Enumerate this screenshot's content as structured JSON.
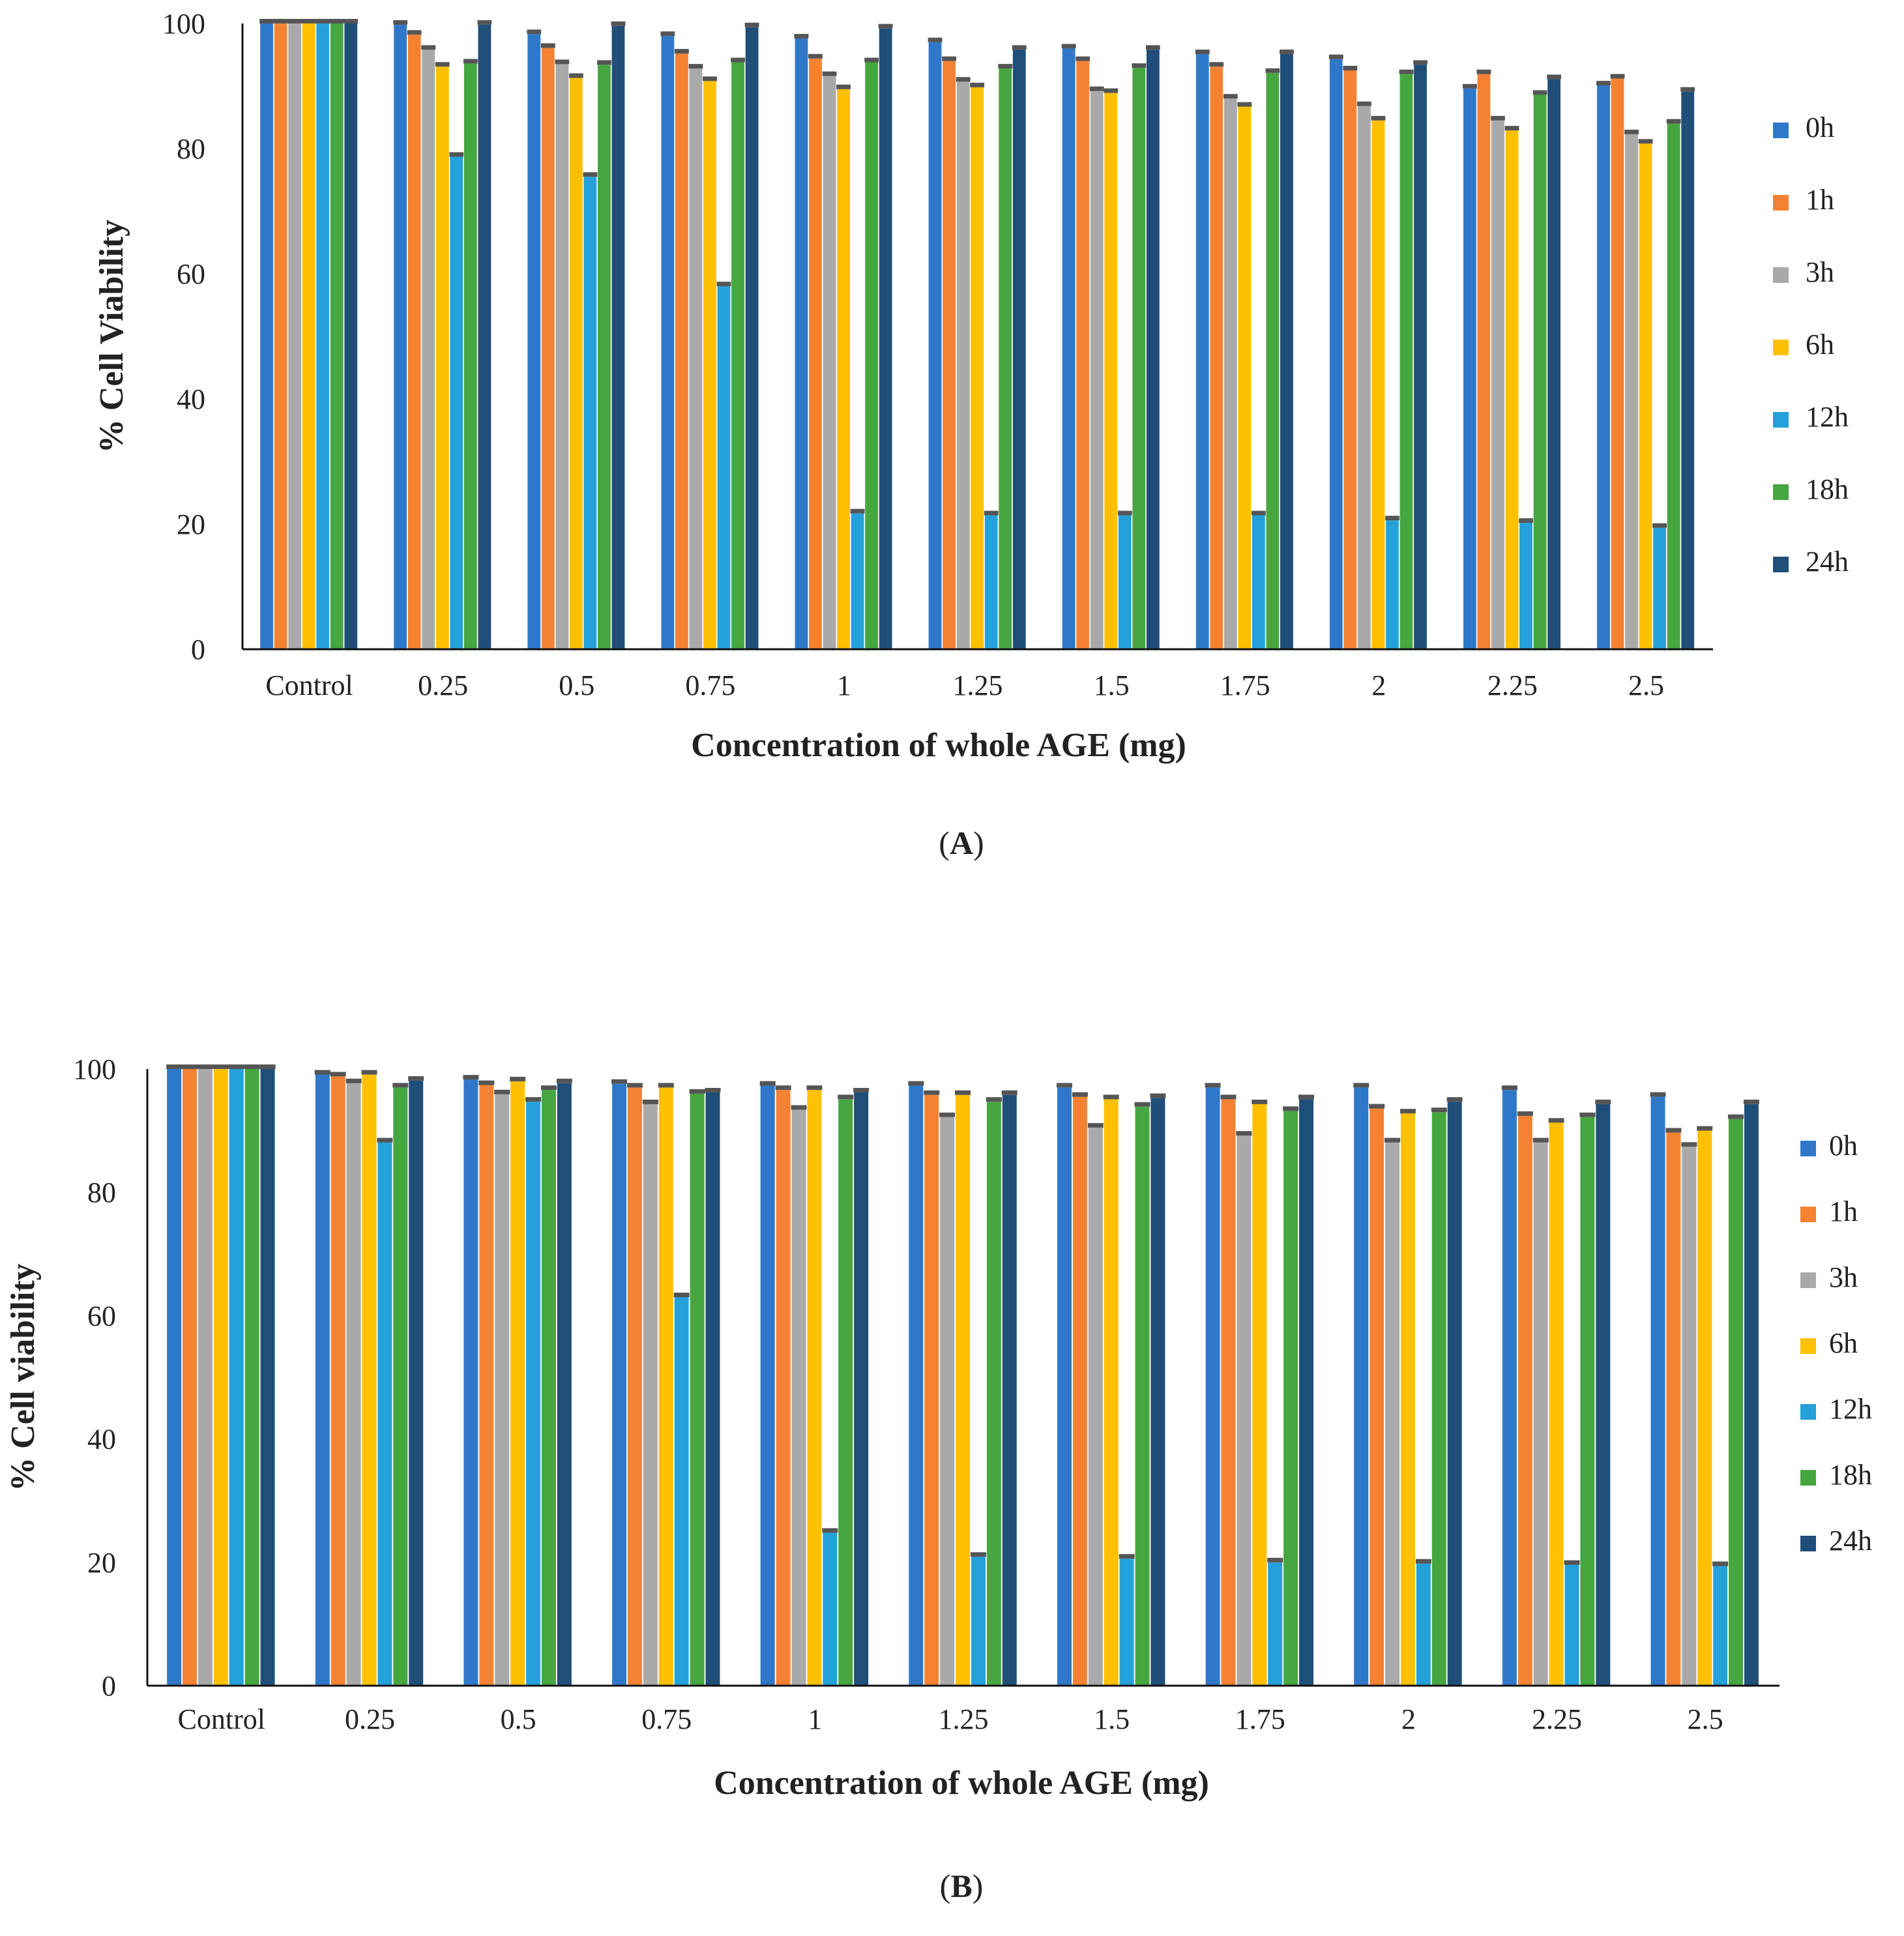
{
  "chart_data": [
    {
      "type": "bar",
      "panel_label": "A",
      "xlabel": "Concentration of whole AGE (mg)",
      "ylabel": "% Cell Viability",
      "ylim": [
        0,
        100
      ],
      "yticks": [
        "0",
        "20",
        "40",
        "60",
        "80",
        "100"
      ],
      "categories": [
        "Control",
        "0.25",
        "0.5",
        "0.75",
        "1",
        "1.25",
        "1.5",
        "1.75",
        "2",
        "2.25",
        "2.5"
      ],
      "legend_position": "right",
      "error_bars": true,
      "series": [
        {
          "name": "0h",
          "color": "#2F78C9",
          "values": [
            100,
            99.8,
            98.3,
            98.0,
            97.6,
            97.0,
            96.0,
            95.1,
            94.3,
            89.6,
            90.1
          ]
        },
        {
          "name": "1h",
          "color": "#F58233",
          "values": [
            100,
            98.2,
            96.1,
            95.2,
            94.4,
            94.0,
            94.0,
            93.1,
            92.5,
            91.9,
            91.2
          ]
        },
        {
          "name": "3h",
          "color": "#A9A9A9",
          "values": [
            100,
            95.8,
            93.5,
            92.8,
            91.6,
            90.7,
            89.2,
            88.0,
            86.8,
            84.5,
            82.3
          ]
        },
        {
          "name": "6h",
          "color": "#FFC000",
          "values": [
            100,
            93.1,
            91.3,
            90.8,
            89.5,
            89.8,
            88.9,
            86.7,
            84.5,
            82.9,
            80.8
          ]
        },
        {
          "name": "12h",
          "color": "#24A1DA",
          "values": [
            100,
            78.7,
            75.5,
            58.0,
            21.7,
            21.4,
            21.4,
            21.4,
            20.6,
            20.2,
            19.4
          ]
        },
        {
          "name": "18h",
          "color": "#46A640",
          "values": [
            100,
            93.6,
            93.4,
            93.8,
            93.8,
            92.8,
            92.9,
            92.1,
            91.9,
            88.6,
            84.0
          ]
        },
        {
          "name": "24h",
          "color": "#1F4E79",
          "values": [
            100,
            99.8,
            99.6,
            99.4,
            99.2,
            95.8,
            95.8,
            95.1,
            93.4,
            91.1,
            89.1
          ]
        }
      ]
    },
    {
      "type": "bar",
      "panel_label": "B",
      "xlabel": "Concentration of whole AGE (mg)",
      "ylabel": "% Cell viability",
      "ylim": [
        0,
        100
      ],
      "yticks": [
        "0",
        "20",
        "40",
        "60",
        "80",
        "100"
      ],
      "categories": [
        "Control",
        "0.25",
        "0.5",
        "0.75",
        "1",
        "1.25",
        "1.5",
        "1.75",
        "2",
        "2.25",
        "2.5"
      ],
      "legend_position": "right",
      "error_bars": true,
      "series": [
        {
          "name": "0h",
          "color": "#2F78C9",
          "values": [
            100,
            99.1,
            98.3,
            97.6,
            97.3,
            97.3,
            97.0,
            97.0,
            97.0,
            96.6,
            95.5
          ]
        },
        {
          "name": "1h",
          "color": "#F58233",
          "values": [
            100,
            98.8,
            97.4,
            97.0,
            96.6,
            95.8,
            95.5,
            95.1,
            93.6,
            92.4,
            89.7
          ]
        },
        {
          "name": "3h",
          "color": "#A9A9A9",
          "values": [
            100,
            97.7,
            95.9,
            94.3,
            93.4,
            92.2,
            90.5,
            89.2,
            88.1,
            88.1,
            87.4
          ]
        },
        {
          "name": "6h",
          "color": "#FFC000",
          "values": [
            100,
            99.1,
            98.0,
            97.0,
            96.6,
            95.8,
            95.1,
            94.3,
            92.8,
            91.3,
            90.0
          ]
        },
        {
          "name": "12h",
          "color": "#24A1DA",
          "values": [
            100,
            88.1,
            94.7,
            63.0,
            24.8,
            20.9,
            20.6,
            20.0,
            19.8,
            19.6,
            19.4
          ]
        },
        {
          "name": "18h",
          "color": "#46A640",
          "values": [
            100,
            97.0,
            96.6,
            96.0,
            95.1,
            94.7,
            93.9,
            93.2,
            93.0,
            92.2,
            91.9
          ]
        },
        {
          "name": "24h",
          "color": "#1F4E79",
          "values": [
            100,
            98.1,
            97.7,
            96.2,
            96.2,
            95.8,
            95.3,
            95.1,
            94.7,
            94.3,
            94.3
          ]
        }
      ]
    }
  ]
}
